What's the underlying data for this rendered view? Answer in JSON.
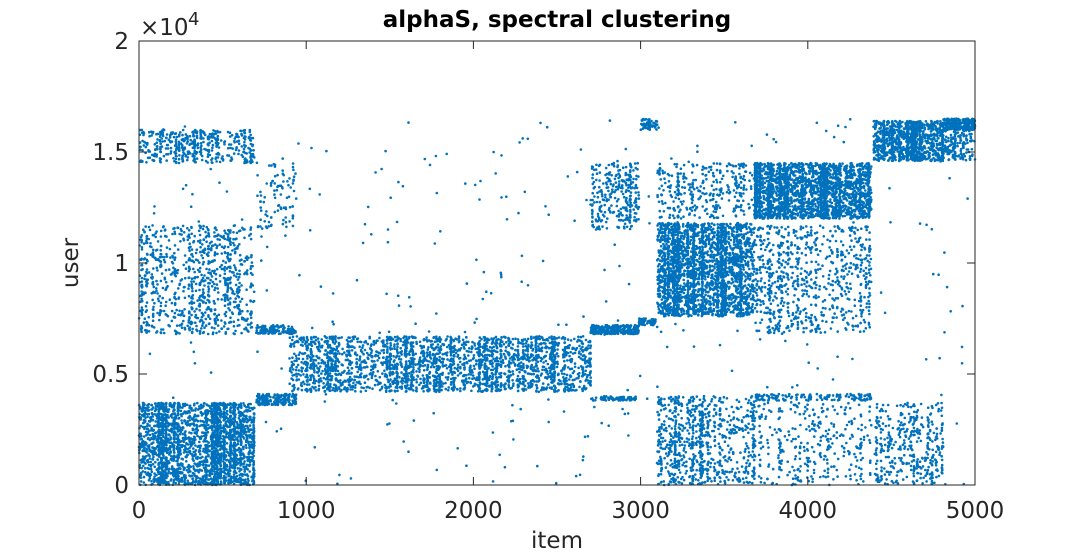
{
  "chart_data": {
    "type": "scatter",
    "title": "alphaS, spectral clustering",
    "xlabel": "item",
    "ylabel": "user",
    "xlim": [
      0,
      5000
    ],
    "ylim": [
      0,
      20000
    ],
    "x_ticks": [
      0,
      1000,
      2000,
      3000,
      4000,
      5000
    ],
    "x_tick_labels": [
      "0",
      "1000",
      "2000",
      "3000",
      "4000",
      "5000"
    ],
    "y_ticks": [
      0,
      5000,
      10000,
      15000,
      20000
    ],
    "y_tick_labels": [
      "0",
      "0.5",
      "1",
      "1.5",
      "2"
    ],
    "y_exponent_base": "×10",
    "y_exponent_power": "4",
    "grid": false,
    "marker_color": "#0072BD",
    "dense_blocks": [
      {
        "x": [
          0,
          690
        ],
        "y": [
          0,
          3700
        ],
        "n": 2600
      },
      {
        "x": [
          0,
          690
        ],
        "y": [
          6800,
          11700
        ],
        "n": 900
      },
      {
        "x": [
          0,
          690
        ],
        "y": [
          14500,
          16000
        ],
        "n": 450
      },
      {
        "x": [
          700,
          940
        ],
        "y": [
          3600,
          4100
        ],
        "n": 220
      },
      {
        "x": [
          700,
          940
        ],
        "y": [
          6800,
          7200
        ],
        "n": 160
      },
      {
        "x": [
          700,
          940
        ],
        "y": [
          11500,
          14500
        ],
        "n": 90
      },
      {
        "x": [
          900,
          2700
        ],
        "y": [
          4200,
          6700
        ],
        "n": 2600
      },
      {
        "x": [
          2700,
          2990
        ],
        "y": [
          6800,
          7200
        ],
        "n": 360
      },
      {
        "x": [
          2700,
          2990
        ],
        "y": [
          3800,
          4000
        ],
        "n": 90
      },
      {
        "x": [
          2700,
          2990
        ],
        "y": [
          11500,
          14500
        ],
        "n": 300
      },
      {
        "x": [
          2990,
          3090
        ],
        "y": [
          7200,
          7500
        ],
        "n": 70
      },
      {
        "x": [
          3000,
          3100
        ],
        "y": [
          16000,
          16500
        ],
        "n": 70
      },
      {
        "x": [
          3100,
          3680
        ],
        "y": [
          7600,
          11800
        ],
        "n": 2700
      },
      {
        "x": [
          3100,
          3680
        ],
        "y": [
          0,
          4000
        ],
        "n": 800
      },
      {
        "x": [
          3100,
          3700
        ],
        "y": [
          12000,
          14500
        ],
        "n": 350
      },
      {
        "x": [
          3680,
          4380
        ],
        "y": [
          12000,
          14500
        ],
        "n": 2500
      },
      {
        "x": [
          3680,
          4380
        ],
        "y": [
          6800,
          11700
        ],
        "n": 750
      },
      {
        "x": [
          3680,
          4380
        ],
        "y": [
          3800,
          4100
        ],
        "n": 150
      },
      {
        "x": [
          3680,
          4380
        ],
        "y": [
          0,
          3700
        ],
        "n": 320
      },
      {
        "x": [
          4390,
          4810
        ],
        "y": [
          14600,
          16400
        ],
        "n": 1100
      },
      {
        "x": [
          4400,
          4810
        ],
        "y": [
          0,
          3700
        ],
        "n": 400
      },
      {
        "x": [
          4810,
          5000
        ],
        "y": [
          16000,
          16500
        ],
        "n": 420
      },
      {
        "x": [
          4810,
          5000
        ],
        "y": [
          14600,
          16000
        ],
        "n": 150
      }
    ],
    "sparse_background_points": 380
  }
}
